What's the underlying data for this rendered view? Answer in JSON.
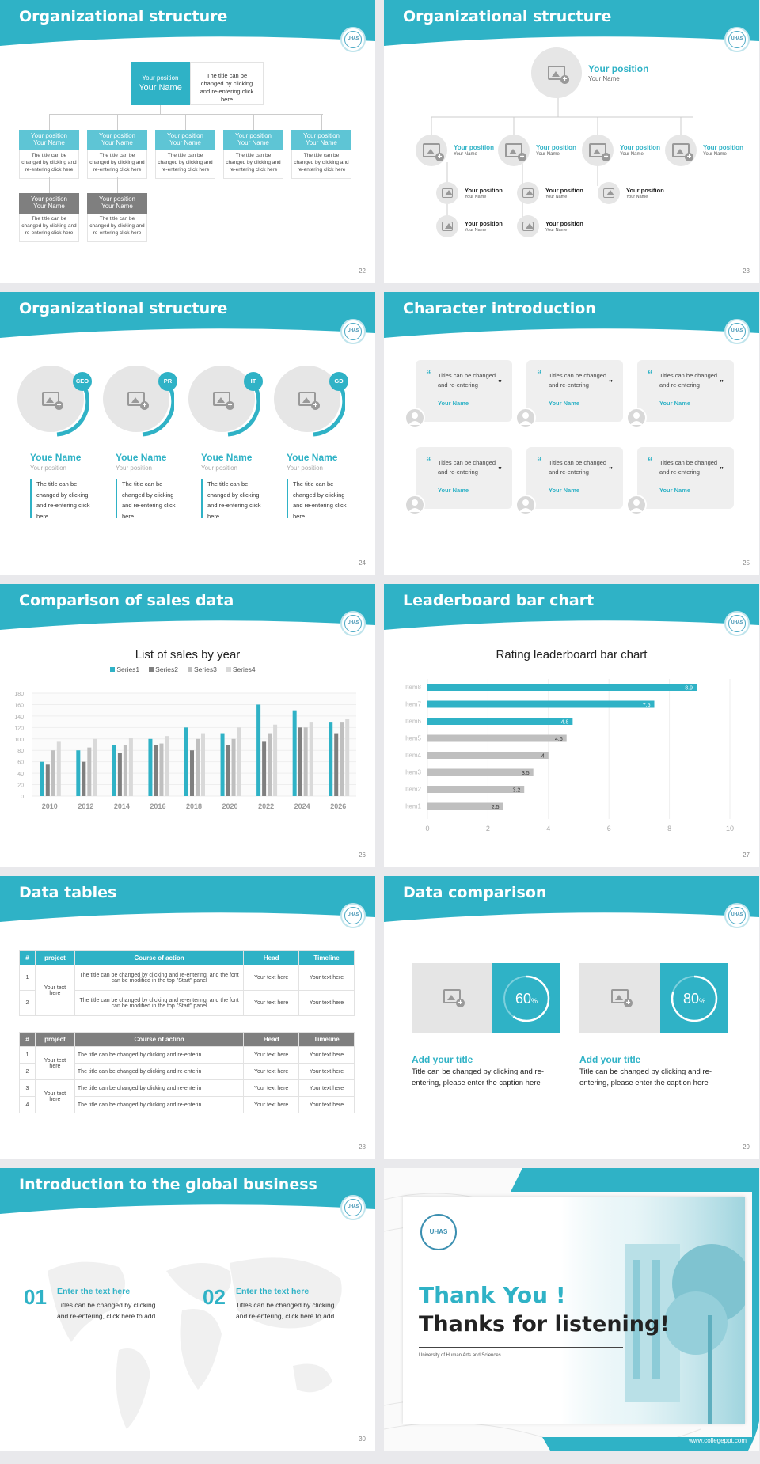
{
  "colors": {
    "teal": "#2fb2c6",
    "grey": "#7f7f7f",
    "light": "#bfbfbf",
    "pale": "#d9d9d9",
    "bg": "#e9e9ec"
  },
  "headers": {
    "s22": "Organizational structure",
    "s23": "Organizational structure",
    "s24": "Organizational structure",
    "s25": "Character introduction",
    "s26": "Comparison of sales data",
    "s27": "Leaderboard bar chart",
    "s28": "Data tables",
    "s29": "Data comparison",
    "s30": "Introduction to the global business"
  },
  "page_numbers": {
    "s22": "22",
    "s23": "23",
    "s24": "24",
    "s25": "25",
    "s26": "26",
    "s27": "27",
    "s28": "28",
    "s29": "29",
    "s30": "30"
  },
  "logo_text": "UHAS",
  "s22": {
    "top": {
      "position": "Your position",
      "name": "Your Name",
      "desc": "The title can be changed by clicking and re-entering click here"
    },
    "members": [
      {
        "position": "Your position",
        "name": "Your Name",
        "desc": "The title can be changed by clicking and re-entering click here"
      },
      {
        "position": "Your position",
        "name": "Your Name",
        "desc": "The title can be changed by clicking and re-entering click here"
      },
      {
        "position": "Your position",
        "name": "Your Name",
        "desc": "The title can be changed by clicking and re-entering click here"
      },
      {
        "position": "Your position",
        "name": "Your Name",
        "desc": "The title can be changed by clicking and re-entering click here"
      },
      {
        "position": "Your position",
        "name": "Your Name",
        "desc": "The title can be changed by clicking and re-entering click here"
      },
      {
        "position": "Your position",
        "name": "Your Name",
        "desc": "The title can be changed by clicking and re-entering click here"
      },
      {
        "position": "Your position",
        "name": "Your Name",
        "desc": "The title can be changed by clicking and re-entering click here"
      }
    ]
  },
  "s23": {
    "top": {
      "position": "Your position",
      "name": "Your Name"
    },
    "level2": [
      {
        "position": "Your position",
        "name": "Your Name"
      },
      {
        "position": "Your position",
        "name": "Your Name"
      },
      {
        "position": "Your position",
        "name": "Your Name"
      },
      {
        "position": "Your position",
        "name": "Your Name"
      }
    ],
    "level3": [
      {
        "position": "Your position",
        "name": "Your Name"
      },
      {
        "position": "Your position",
        "name": "Your Name"
      },
      {
        "position": "Your position",
        "name": "Your Name"
      },
      {
        "position": "Your position",
        "name": "Your Name"
      },
      {
        "position": "Your position",
        "name": "Your Name"
      },
      {
        "position": "Your position",
        "name": "Your Name"
      }
    ]
  },
  "s24": {
    "people": [
      {
        "tag": "CEO",
        "name": "Youe Name",
        "position": "Your position",
        "desc": "The title can be changed by clicking and re-entering click here"
      },
      {
        "tag": "PR",
        "name": "Youe Name",
        "position": "Your position",
        "desc": "The title can be changed by clicking and re-entering click here"
      },
      {
        "tag": "IT",
        "name": "Youe Name",
        "position": "Your position",
        "desc": "The title can be changed by clicking and re-entering click here"
      },
      {
        "tag": "GD",
        "name": "Youe Name",
        "position": "Your position",
        "desc": "The title can be changed by clicking and re-entering click here"
      }
    ]
  },
  "s25": {
    "cards": [
      {
        "text": "Titles can be changed and re-entering",
        "name": "Your Name"
      },
      {
        "text": "Titles can be changed and re-entering",
        "name": "Your Name"
      },
      {
        "text": "Titles can be changed and re-entering",
        "name": "Your Name"
      },
      {
        "text": "Titles can be changed and re-entering",
        "name": "Your Name"
      },
      {
        "text": "Titles can be changed and re-entering",
        "name": "Your Name"
      },
      {
        "text": "Titles can be changed and re-entering",
        "name": "Your Name"
      }
    ]
  },
  "chart_data": [
    {
      "type": "bar",
      "title": "List of sales by year",
      "categories": [
        "2010",
        "2012",
        "2014",
        "2016",
        "2018",
        "2020",
        "2022",
        "2024",
        "2026"
      ],
      "series": [
        {
          "name": "Series1",
          "color": "#2fb2c6",
          "values": [
            60,
            80,
            90,
            100,
            120,
            110,
            160,
            150,
            130
          ]
        },
        {
          "name": "Series2",
          "color": "#7f7f7f",
          "values": [
            55,
            60,
            75,
            90,
            80,
            90,
            95,
            120,
            110
          ]
        },
        {
          "name": "Series3",
          "color": "#bfbfbf",
          "values": [
            80,
            85,
            90,
            92,
            100,
            100,
            110,
            120,
            130
          ]
        },
        {
          "name": "Series4",
          "color": "#d9d9d9",
          "values": [
            95,
            100,
            102,
            105,
            110,
            120,
            125,
            130,
            135
          ]
        }
      ],
      "ylim": [
        0,
        180
      ],
      "yticks": [
        "0",
        "20",
        "40",
        "60",
        "80",
        "100",
        "120",
        "140",
        "160",
        "180"
      ],
      "legend": "top",
      "grid": true
    },
    {
      "type": "bar",
      "orientation": "horizontal",
      "title": "Rating leaderboard bar chart",
      "categories": [
        "Item8",
        "Item7",
        "Item6",
        "Item5",
        "Item4",
        "Item3",
        "Item2",
        "Item1"
      ],
      "values": [
        8.9,
        7.5,
        4.8,
        4.6,
        4,
        3.5,
        3.2,
        2.5
      ],
      "labels": [
        "8.9",
        "7.5",
        "4.8",
        "4.6",
        "4",
        "3.5",
        "3.2",
        "2.5"
      ],
      "xlim": [
        0,
        10
      ],
      "xticks": [
        "0",
        "2",
        "4",
        "6",
        "8",
        "10"
      ],
      "grid": true
    }
  ],
  "s28": {
    "table1": {
      "headers": [
        "#",
        "project",
        "Course of action",
        "Head",
        "Timeline"
      ],
      "rows": [
        {
          "n": "1",
          "action": "The title can be changed by clicking and re-entering, and the font can be modified in the top \"Start\" panel",
          "head": "Your text here",
          "timeline": "Your text here"
        },
        {
          "n": "2",
          "action": "The title can be changed by clicking and re-entering, and the font can be modified in the top \"Start\" panel",
          "head": "Your text here",
          "timeline": "Your text here"
        }
      ],
      "project": "Your text here"
    },
    "table2": {
      "headers": [
        "#",
        "project",
        "Course of action",
        "Head",
        "Timeline"
      ],
      "rows": [
        {
          "n": "1",
          "action": "The title can be changed by clicking and re-enterin",
          "head": "Your text here",
          "timeline": "Your text here"
        },
        {
          "n": "2",
          "action": "The title can be changed by clicking and re-enterin",
          "head": "Your text here",
          "timeline": "Your text here"
        },
        {
          "n": "3",
          "action": "The title can be changed by clicking and re-enterin",
          "head": "Your text here",
          "timeline": "Your text here"
        },
        {
          "n": "4",
          "action": "The title can be changed by clicking and re-enterin",
          "head": "Your text here",
          "timeline": "Your text here"
        }
      ],
      "project_a": "Your text here",
      "project_b": "Your text here"
    }
  },
  "s29": {
    "items": [
      {
        "percent": 60,
        "percent_label": "60",
        "unit": "%",
        "title": "Add your title",
        "desc": "Title can be changed by clicking and re-entering, please enter the caption here"
      },
      {
        "percent": 80,
        "percent_label": "80",
        "unit": "%",
        "title": "Add your title",
        "desc": "Title can be changed by clicking and re-entering, please enter the caption here"
      }
    ]
  },
  "s30": {
    "items": [
      {
        "num": "01",
        "title": "Enter the text here",
        "desc": "Titles can be changed by clicking and re-entering, click here to add"
      },
      {
        "num": "02",
        "title": "Enter the text here",
        "desc": "Titles can be changed by clicking and re-entering, click here to add"
      }
    ]
  },
  "s31": {
    "thanks": "Thank You !",
    "listening": "Thanks for listening!",
    "university": "University of Human Arts and Sciences",
    "website": "www.collegeppt.com"
  }
}
